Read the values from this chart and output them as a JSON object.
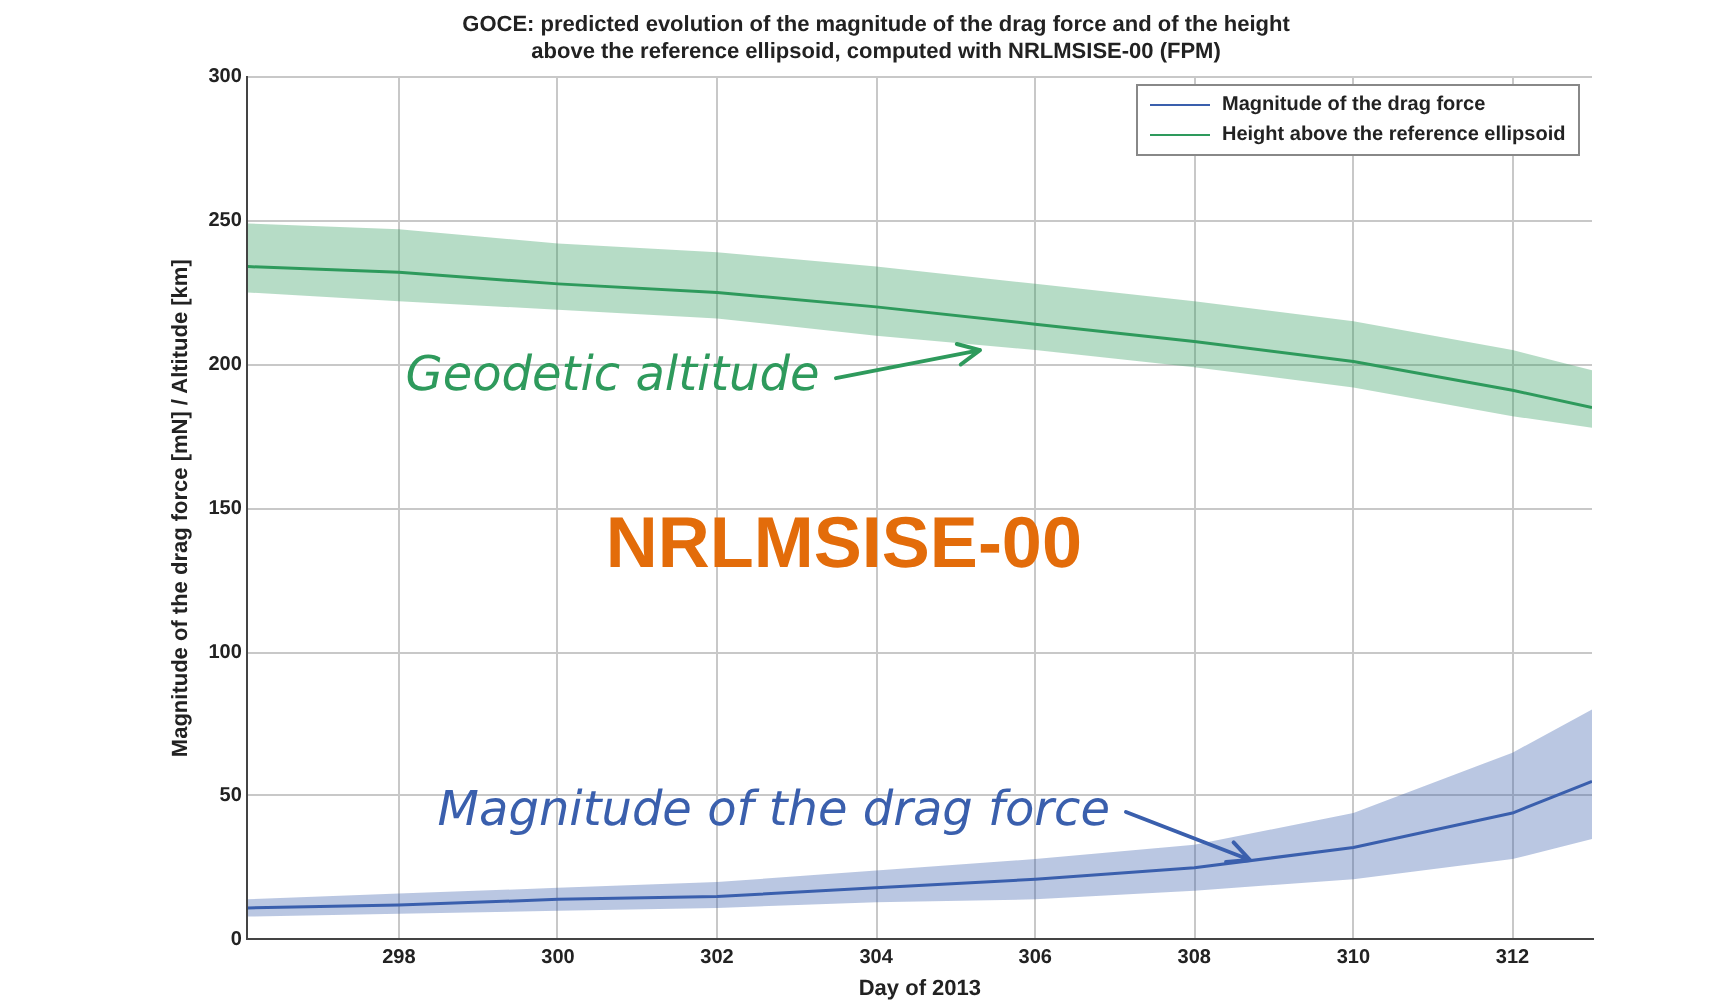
{
  "chart_data": {
    "type": "line",
    "title": "GOCE: predicted evolution of the magnitude of the drag force and of the height\nabove the reference ellipsoid, computed with NRLMSISE-00 (FPM)",
    "xlabel": "Day of 2013",
    "ylabel": "Magnitude of the drag force [mN] / Altitude [km]",
    "x": [
      296.1,
      298,
      300,
      302,
      304,
      306,
      308,
      310,
      312,
      313
    ],
    "series": [
      {
        "name": "Magnitude of the drag force",
        "color": "#3a5fad",
        "values": [
          11,
          12,
          14,
          15,
          18,
          21,
          25,
          32,
          44,
          55
        ],
        "lower": [
          8,
          9,
          10,
          11,
          13,
          14,
          17,
          21,
          28,
          35
        ],
        "upper": [
          14,
          16,
          18,
          20,
          24,
          28,
          33,
          44,
          65,
          80
        ]
      },
      {
        "name": "Height above the reference ellipsoid",
        "color": "#2e9a5c",
        "values": [
          234,
          232,
          228,
          225,
          220,
          214,
          208,
          201,
          191,
          185
        ],
        "lower": [
          225,
          222,
          219,
          216,
          210,
          205,
          199,
          192,
          182,
          178
        ],
        "upper": [
          249,
          247,
          242,
          239,
          234,
          228,
          222,
          215,
          205,
          198
        ]
      }
    ],
    "xlim": [
      296.1,
      313
    ],
    "xticks": [
      298,
      300,
      302,
      304,
      306,
      308,
      310,
      312
    ],
    "ylim": [
      0,
      300
    ],
    "yticks": [
      0,
      50,
      100,
      150,
      200,
      250,
      300
    ],
    "grid": true,
    "legend": "top right",
    "marker": "none",
    "line_style": "solid",
    "annotations": [
      {
        "text": "Geodetic altitude",
        "x": 305.3,
        "y": 205
      },
      {
        "text": "Magnitude of the drag force",
        "x": 308.7,
        "y": 27.5
      },
      "NRLMSISE-00"
    ]
  }
}
